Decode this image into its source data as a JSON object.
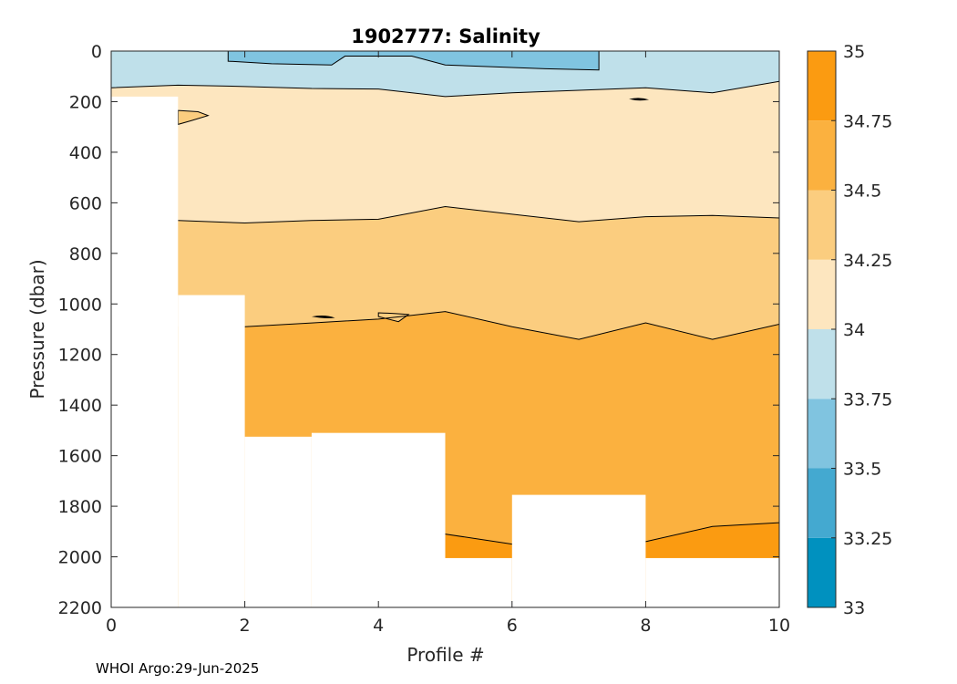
{
  "chart_data": {
    "type": "contour",
    "title": "1902777:  Salinity",
    "xlabel": "Profile #",
    "ylabel": "Pressure (dbar)",
    "xlim": [
      0,
      10
    ],
    "ylim": [
      0,
      2200
    ],
    "y_reversed": true,
    "xticks": [
      0,
      2,
      4,
      6,
      8,
      10
    ],
    "yticks": [
      0,
      200,
      400,
      600,
      800,
      1000,
      1200,
      1400,
      1600,
      1800,
      2000,
      2200
    ],
    "colorbar": {
      "min": 33,
      "max": 35,
      "ticks": [
        33,
        33.25,
        33.5,
        33.75,
        34,
        34.25,
        34.5,
        34.75,
        35
      ],
      "tick_labels": [
        "33",
        "33.25",
        "33.5",
        "33.75",
        "34",
        "34.25",
        "34.5",
        "34.75",
        "35"
      ],
      "band_colors": [
        "#0091bf",
        "#44a9d0",
        "#80c4e0",
        "#bfe0ea",
        "#fde6bf",
        "#fbcd7f",
        "#fbb13f",
        "#fb9b11"
      ]
    },
    "level_boundaries": [
      {
        "between": [
          33.5,
          33.75
        ],
        "x": [
          0,
          1.75,
          1.75,
          2.4,
          3.3,
          3.5,
          4.5,
          5.0,
          6.5,
          7.3,
          7.3
        ],
        "y": [
          0,
          0,
          40,
          50,
          55,
          20,
          20,
          55,
          70,
          75,
          0
        ]
      },
      {
        "between": [
          33.75,
          34
        ],
        "x": [
          0,
          1,
          2,
          3,
          4,
          5,
          6,
          7,
          8,
          9,
          10
        ],
        "y": [
          145,
          135,
          140,
          148,
          150,
          180,
          165,
          155,
          145,
          165,
          120
        ]
      },
      {
        "between": [
          34,
          34.25
        ],
        "x": [
          1,
          2,
          3,
          4,
          5,
          6,
          7,
          8,
          9,
          10
        ],
        "y": [
          670,
          680,
          670,
          665,
          615,
          645,
          675,
          655,
          650,
          660
        ]
      },
      {
        "between": [
          34.25,
          34.5
        ],
        "x": [
          2,
          3,
          4,
          5,
          6,
          7,
          8,
          9,
          10
        ],
        "y": [
          1090,
          1075,
          1060,
          1030,
          1090,
          1140,
          1075,
          1140,
          1080
        ]
      },
      {
        "between": [
          34.5,
          34.75
        ],
        "x": [
          5,
          6,
          8,
          9,
          10
        ],
        "y": [
          1910,
          1950,
          1940,
          1880,
          1865
        ]
      }
    ],
    "profile_max_pressure": [
      {
        "from": 0,
        "to": 1,
        "pressure": 180
      },
      {
        "from": 1,
        "to": 2,
        "pressure": 965
      },
      {
        "from": 2,
        "to": 3,
        "pressure": 1525
      },
      {
        "from": 3,
        "to": 5,
        "pressure": 1510
      },
      {
        "from": 5,
        "to": 6,
        "pressure": 2005
      },
      {
        "from": 6,
        "to": 8,
        "pressure": 1755
      },
      {
        "from": 8,
        "to": 10,
        "pressure": 2005
      }
    ]
  },
  "footer": {
    "credit": "WHOI Argo:29-Jun-2025"
  }
}
